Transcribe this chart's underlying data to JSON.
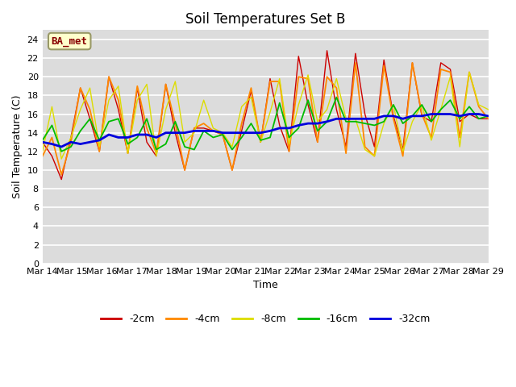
{
  "title": "Soil Temperatures Set B",
  "xlabel": "Time",
  "ylabel": "Soil Temperature (C)",
  "annotation": "BA_met",
  "ylim": [
    0,
    25
  ],
  "yticks": [
    0,
    2,
    4,
    6,
    8,
    10,
    12,
    14,
    16,
    18,
    20,
    22,
    24
  ],
  "xticklabels": [
    "Mar 14",
    "Mar 15",
    "Mar 16",
    "Mar 17",
    "Mar 18",
    "Mar 19",
    "Mar 20",
    "Mar 21",
    "Mar 22",
    "Mar 23",
    "Mar 24",
    "Mar 25",
    "Mar 26",
    "Mar 27",
    "Mar 28",
    "Mar 29"
  ],
  "colors": {
    "-2cm": "#cc0000",
    "-4cm": "#ff8800",
    "-8cm": "#dddd00",
    "-16cm": "#00bb00",
    "-32cm": "#0000dd"
  },
  "background_color": "#dcdcdc",
  "grid_color": "#ffffff",
  "series": {
    "-2cm": [
      13.0,
      11.5,
      9.0,
      13.5,
      18.8,
      15.5,
      12.0,
      20.0,
      16.5,
      11.8,
      18.8,
      13.0,
      11.5,
      19.2,
      14.0,
      10.0,
      14.5,
      14.5,
      14.2,
      13.8,
      10.0,
      14.2,
      18.5,
      13.0,
      19.8,
      14.8,
      12.0,
      22.2,
      17.0,
      13.0,
      22.8,
      16.5,
      12.5,
      22.5,
      16.0,
      12.5,
      21.8,
      15.8,
      12.2,
      21.5,
      15.8,
      15.2,
      21.5,
      20.8,
      15.2,
      16.0,
      15.5,
      15.5
    ],
    "-4cm": [
      11.5,
      13.5,
      9.5,
      13.0,
      18.8,
      16.5,
      12.0,
      20.0,
      17.5,
      11.8,
      19.0,
      14.5,
      11.8,
      19.2,
      15.0,
      10.0,
      14.5,
      15.0,
      14.2,
      13.8,
      10.0,
      15.0,
      18.8,
      13.0,
      19.5,
      19.5,
      12.0,
      20.0,
      19.8,
      13.0,
      20.0,
      18.8,
      11.8,
      21.5,
      12.5,
      11.5,
      21.2,
      15.5,
      11.5,
      21.5,
      16.0,
      13.5,
      20.8,
      20.5,
      13.5,
      20.5,
      16.8,
      15.5
    ],
    "-8cm": [
      12.0,
      16.8,
      11.2,
      13.5,
      16.5,
      18.8,
      12.5,
      17.5,
      19.0,
      11.8,
      17.5,
      19.2,
      11.5,
      16.5,
      19.5,
      13.0,
      14.0,
      17.5,
      14.5,
      14.0,
      12.5,
      16.8,
      17.8,
      13.0,
      16.2,
      19.8,
      12.8,
      17.0,
      20.2,
      15.2,
      16.5,
      19.8,
      15.5,
      15.5,
      12.2,
      11.5,
      15.0,
      17.0,
      12.0,
      15.2,
      17.0,
      13.2,
      16.5,
      20.0,
      12.5,
      20.5,
      17.0,
      16.5
    ],
    "-16cm": [
      13.2,
      14.8,
      12.0,
      12.5,
      14.2,
      15.5,
      13.2,
      15.2,
      15.5,
      12.8,
      13.5,
      15.5,
      12.2,
      12.8,
      15.2,
      12.5,
      12.2,
      14.2,
      13.5,
      13.8,
      12.2,
      13.5,
      15.0,
      13.2,
      13.5,
      17.2,
      13.5,
      14.5,
      17.5,
      14.2,
      15.2,
      17.8,
      15.2,
      15.2,
      15.0,
      14.8,
      15.2,
      17.0,
      15.0,
      15.8,
      17.0,
      15.2,
      16.5,
      17.5,
      15.5,
      16.8,
      15.5,
      15.8
    ],
    "-32cm": [
      13.0,
      12.8,
      12.5,
      13.0,
      12.8,
      13.0,
      13.2,
      13.8,
      13.5,
      13.5,
      13.8,
      13.8,
      13.5,
      14.0,
      14.0,
      14.0,
      14.2,
      14.2,
      14.2,
      14.0,
      14.0,
      14.0,
      14.0,
      14.0,
      14.2,
      14.5,
      14.5,
      14.8,
      15.0,
      15.0,
      15.2,
      15.5,
      15.5,
      15.5,
      15.5,
      15.5,
      15.8,
      15.8,
      15.5,
      15.8,
      15.8,
      16.0,
      16.0,
      16.0,
      15.8,
      16.0,
      16.0,
      15.8
    ]
  },
  "num_points": 48,
  "figsize": [
    6.4,
    4.8
  ],
  "dpi": 100,
  "title_fontsize": 12,
  "axis_fontsize": 9,
  "tick_fontsize": 8
}
